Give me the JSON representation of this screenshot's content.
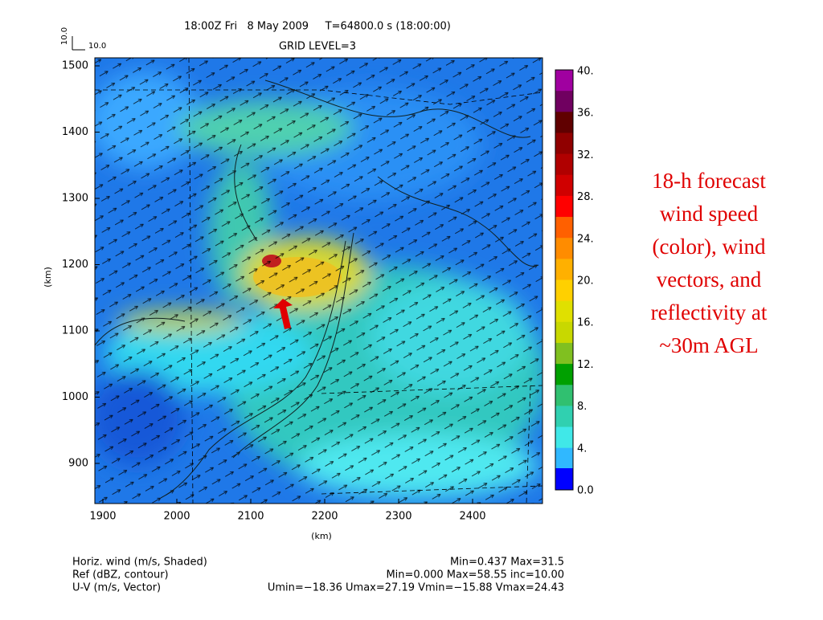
{
  "header": {
    "time": "18:00Z Fri   8 May 2009     T=64800.0 s (18:00:00)",
    "grid_level": "GRID LEVEL=3"
  },
  "vector_scale": {
    "vertical": "10.0",
    "horizontal": "10.0"
  },
  "axes": {
    "x_label": "(km)",
    "y_label": "(km)",
    "x_ticks": [
      "1900",
      "2000",
      "2100",
      "2200",
      "2300",
      "2400"
    ],
    "y_ticks": [
      "1500",
      "1400",
      "1300",
      "1200",
      "1100",
      "1000",
      "900"
    ]
  },
  "colorbar": {
    "labels": [
      "40.",
      "36.",
      "32.",
      "28.",
      "24.",
      "20.",
      "16.",
      "12.",
      "8.",
      "4.",
      "0.0"
    ]
  },
  "footer": {
    "lines": [
      {
        "left": "Horiz. wind (m/s, Shaded)",
        "right": "Min=0.437 Max=31.5"
      },
      {
        "left": "Ref (dBZ, contour)",
        "right": "Min=0.000 Max=58.55 inc=10.00"
      },
      {
        "left": "U-V (m/s, Vector)",
        "right": "Umin=−18.36 Umax=27.19 Vmin=−15.88 Vmax=24.43"
      }
    ]
  },
  "caption": {
    "lines": [
      "18-h forecast",
      "wind speed",
      "(color), wind",
      "vectors, and",
      "reflectivity at",
      "~30m AGL"
    ]
  }
}
